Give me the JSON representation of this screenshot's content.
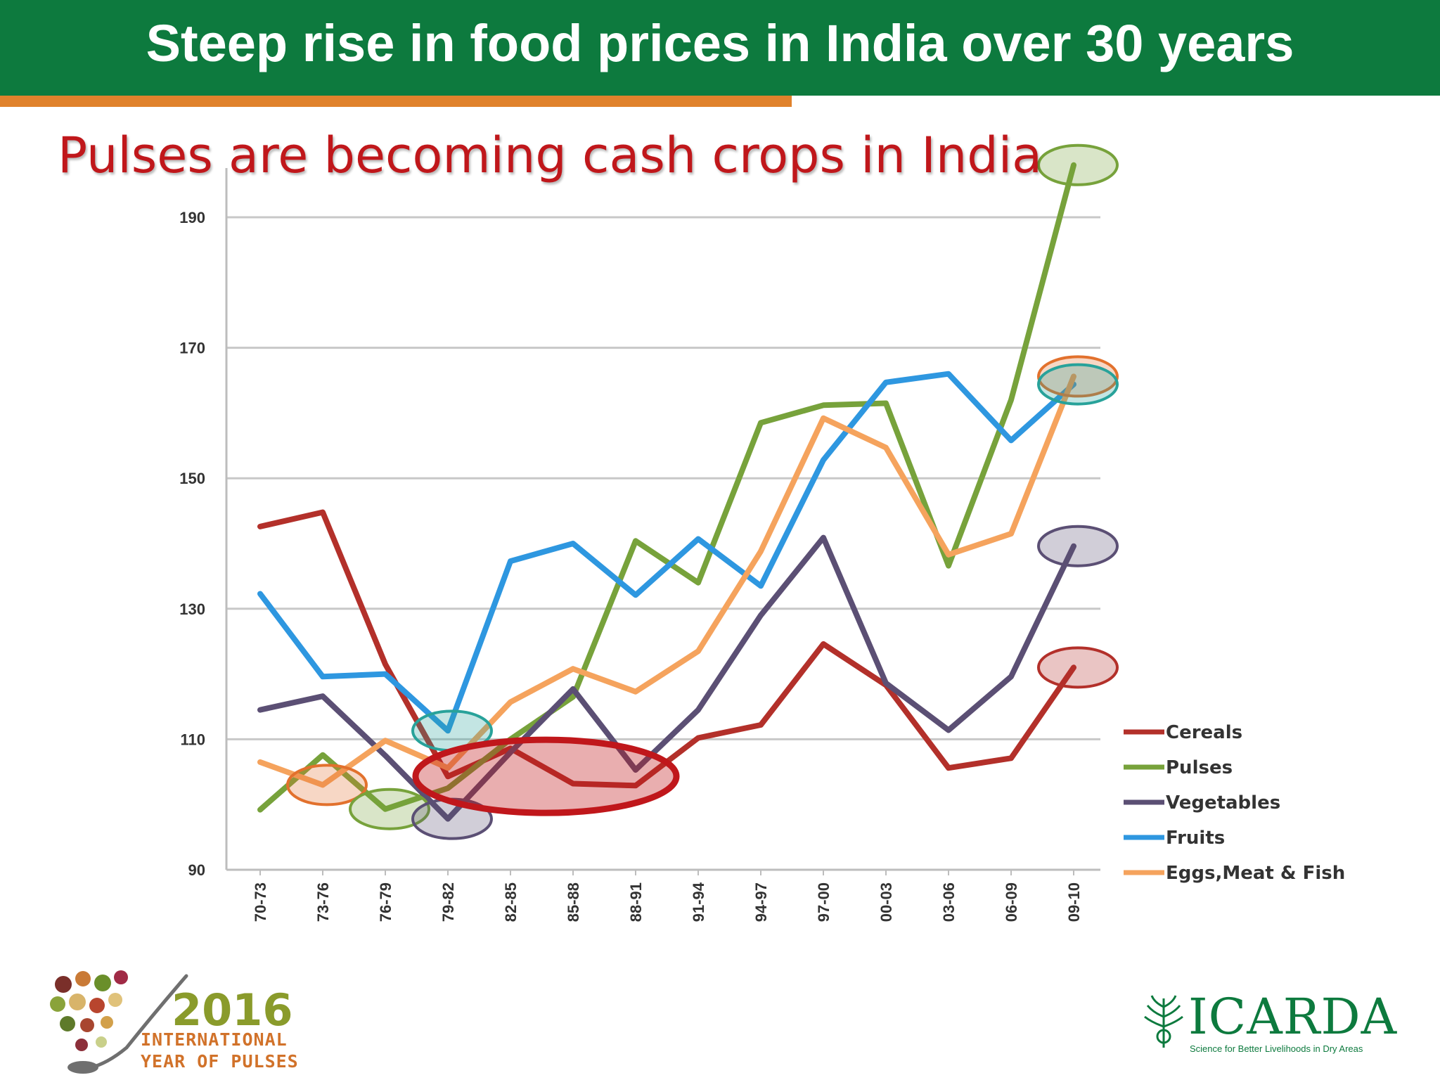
{
  "header": {
    "title": "Steep rise in food prices in India over 30 years"
  },
  "slide": {
    "subtitle": "Pulses are becoming cash crops in India"
  },
  "chart_data": {
    "type": "line",
    "title": "",
    "xlabel": "",
    "ylabel": "",
    "categories": [
      "70-73",
      "73-76",
      "76-79",
      "79-82",
      "82-85",
      "85-88",
      "88-91",
      "91-94",
      "94-97",
      "97-00",
      "00-03",
      "03-06",
      "06-09",
      "09-10"
    ],
    "ylim": [
      90,
      198
    ],
    "yticks": [
      90,
      110,
      130,
      150,
      170,
      190
    ],
    "grid": true,
    "legend_position": "right",
    "series": [
      {
        "name": "Cereals",
        "color": "#b3302a",
        "values": [
          142.6,
          144.8,
          121.5,
          104.3,
          108.6,
          103.2,
          102.9,
          110.2,
          112.2,
          124.6,
          118.3,
          105.6,
          107.1,
          121.0
        ]
      },
      {
        "name": "Pulses",
        "color": "#77a23b",
        "values": [
          99.2,
          107.6,
          99.3,
          102.5,
          110.0,
          116.5,
          140.4,
          134.0,
          158.5,
          161.2,
          161.5,
          136.6,
          162.0,
          198.0
        ]
      },
      {
        "name": "Vegetables",
        "color": "#5b4f74",
        "values": [
          114.5,
          116.6,
          107.5,
          97.8,
          108.0,
          117.7,
          105.3,
          114.5,
          129.0,
          140.9,
          118.6,
          111.4,
          119.6,
          139.6
        ]
      },
      {
        "name": "Fruits",
        "color": "#2e97e0",
        "values": [
          132.3,
          119.6,
          120.0,
          111.3,
          137.3,
          140.0,
          132.1,
          140.7,
          133.5,
          152.8,
          164.7,
          166.0,
          155.8,
          164.4
        ]
      },
      {
        "name": "Eggs,Meat & Fish",
        "color": "#f5a35d",
        "values": [
          106.5,
          103.0,
          109.8,
          105.6,
          115.7,
          120.8,
          117.3,
          123.5,
          138.8,
          159.2,
          154.7,
          138.3,
          141.5,
          165.6
        ]
      }
    ],
    "highlights": [
      {
        "series": "Pulses",
        "category": "09-10",
        "color": "#77a23b"
      },
      {
        "series": "Eggs,Meat & Fish",
        "category": "09-10",
        "color": "#e2712d"
      },
      {
        "series": "Fruits",
        "category": "09-10",
        "color": "#28a29a"
      },
      {
        "series": "Vegetables",
        "category": "09-10",
        "color": "#5b4f74"
      },
      {
        "series": "Cereals",
        "category": "09-10",
        "color": "#b3302a"
      },
      {
        "series": "Fruits",
        "category": "79-82",
        "color": "#28a29a"
      },
      {
        "series": "Eggs,Meat & Fish",
        "category": "73-76",
        "color": "#e2712d"
      },
      {
        "series": "Pulses",
        "category": "76-79",
        "color": "#77a23b"
      },
      {
        "series": "Vegetables",
        "category": "79-82",
        "color": "#5b4f74"
      },
      {
        "series": "Cereals",
        "category": "79-82 – 88-91",
        "color": "#c0171b"
      }
    ]
  },
  "logos": {
    "iyp_year": "2016",
    "iyp_line1": "INTERNATIONAL",
    "iyp_line2": "YEAR OF PULSES",
    "icarda_name": "ICARDA",
    "icarda_tagline": "Science for Better Livelihoods in Dry Areas"
  }
}
